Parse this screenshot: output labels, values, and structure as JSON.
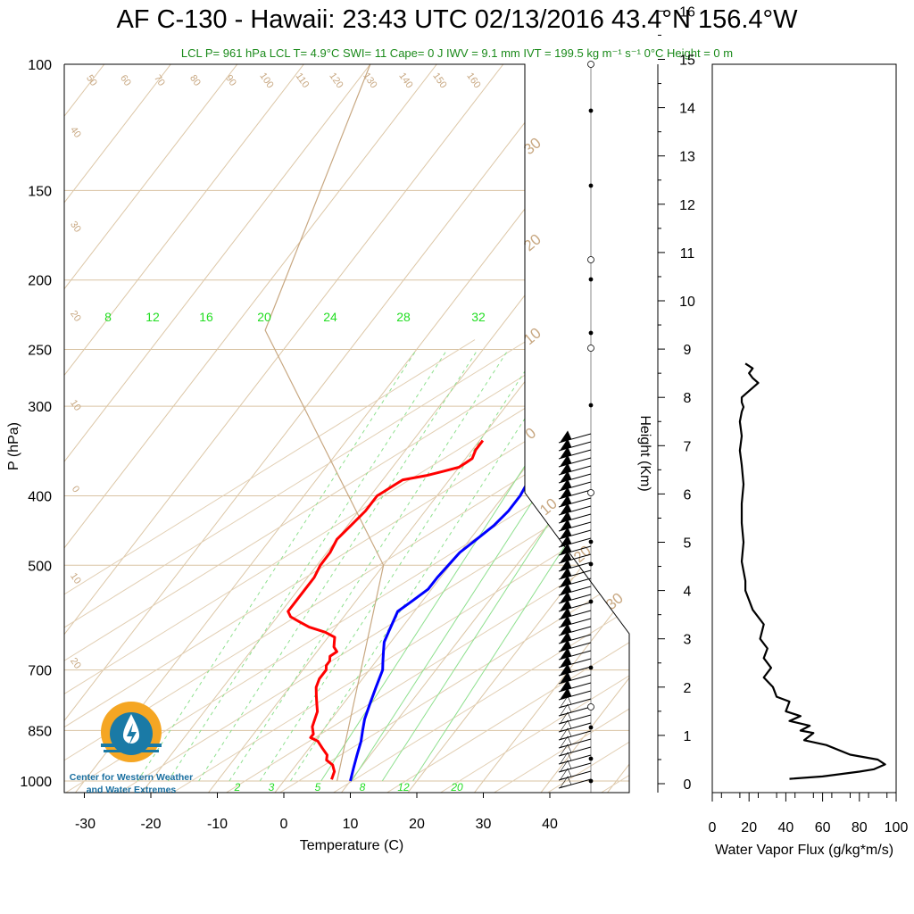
{
  "header": {
    "title": "AF C-130 - Hawaii: 23:43 UTC 02/13/2016  43.4°N 156.4°W",
    "subtitle": "LCL P= 961 hPa  LCL T= 4.9°C  SWI= 11  Cape= 0 J  IWV = 9.1 mm  IVT = 199.5 kg m⁻¹ s⁻¹  0°C Height = 0 m"
  },
  "logo": {
    "org_line1": "Center for Western Weather",
    "org_line2": "and Water Extremes",
    "colors": {
      "sun": "#f5a623",
      "water": "#1a7aa6"
    }
  },
  "chart_data": [
    {
      "type": "line",
      "name": "skew-t",
      "xlabel": "Temperature (C)",
      "ylabel": "P (hPa)",
      "xlim": [
        -30,
        40
      ],
      "ylim": [
        1000,
        100
      ],
      "y_scale": "log",
      "x_ticks": [
        -30,
        -20,
        -10,
        0,
        10,
        20,
        30,
        40
      ],
      "y_ticks": [
        100,
        150,
        200,
        250,
        300,
        400,
        500,
        700,
        850,
        1000
      ],
      "isotherm_labels": [
        "50",
        "60",
        "70",
        "80",
        "90",
        "100",
        "110",
        "120",
        "130",
        "140",
        "150",
        "160",
        "40",
        "30",
        "20",
        "10",
        "0",
        "10",
        "20",
        "30",
        "20",
        "10",
        "0",
        "10",
        "20",
        "30"
      ],
      "mixing_ratio_upper_labels": [
        "8",
        "12",
        "16",
        "20",
        "24",
        "28",
        "32"
      ],
      "mixing_ratio_lower_labels": [
        "2",
        "3",
        "5",
        "8",
        "12",
        "20"
      ],
      "colors": {
        "temperature": "#ff0000",
        "dewpoint": "#0000ff",
        "mixing_ratio": "#00cc00",
        "isotherms": "#d2b48c"
      },
      "series": [
        {
          "name": "",
          "role": "temperature",
          "color": "#ff0000",
          "x": [
            7,
            6.5,
            5.5,
            4,
            3.5,
            2,
            0.5,
            -1,
            -1,
            -1.5,
            -2,
            -2.5,
            -3,
            -4,
            -5,
            -6,
            -6.5,
            -6.5,
            -7,
            -7,
            -7.5,
            -7,
            -8,
            -8.5,
            -9,
            -11,
            -14,
            -16,
            -18,
            -19,
            -19,
            -19,
            -19,
            -19.5,
            -19.5,
            -20,
            -19.5,
            -19,
            -19,
            -19,
            -18.5,
            -18,
            -17.5,
            -17,
            -14,
            -12,
            -10,
            -9.5,
            -9,
            -9.5,
            -9.5
          ],
          "y": [
            995,
            970,
            950,
            935,
            920,
            900,
            880,
            870,
            860,
            850,
            840,
            820,
            800,
            780,
            760,
            740,
            720,
            700,
            690,
            680,
            670,
            660,
            650,
            640,
            630,
            620,
            610,
            600,
            590,
            580,
            560,
            540,
            520,
            500,
            480,
            460,
            440,
            420,
            410,
            400,
            395,
            390,
            385,
            380,
            375,
            370,
            365,
            360,
            355,
            345,
            335
          ]
        },
        {
          "name": "",
          "role": "dewpoint",
          "color": "#0000ff",
          "x": [
            10,
            9,
            8,
            7,
            6,
            5,
            4,
            3,
            2,
            1,
            0,
            -1,
            -1.5,
            -2,
            -2.5,
            -1.5,
            -0.5,
            -0.5,
            0,
            1,
            2,
            2.5,
            2.5,
            2,
            2,
            2,
            1.5,
            1,
            0,
            -0.5,
            -0.5
          ],
          "y": [
            1000,
            960,
            920,
            880,
            850,
            820,
            780,
            740,
            700,
            680,
            660,
            640,
            620,
            600,
            580,
            560,
            540,
            520,
            480,
            460,
            440,
            420,
            400,
            380,
            360,
            345,
            335,
            325,
            315,
            305,
            300
          ]
        }
      ]
    },
    {
      "type": "line",
      "name": "water-vapor-flux",
      "xlabel": "Water Vapor Flux (g/kg*m/s)",
      "ylabel": "Height (Km)",
      "xlim": [
        0,
        100
      ],
      "ylim": [
        0,
        16.5
      ],
      "x_ticks": [
        0,
        20,
        40,
        60,
        80,
        100
      ],
      "y_ticks": [
        0,
        1,
        2,
        3,
        4,
        5,
        6,
        7,
        8,
        9,
        10,
        11,
        12,
        13,
        14,
        15,
        16
      ],
      "series": [
        {
          "name": "",
          "color": "#000000",
          "x": [
            42,
            60,
            80,
            88,
            94,
            90,
            75,
            62,
            50,
            55,
            48,
            53,
            42,
            48,
            40,
            42,
            35,
            33,
            28,
            32,
            28,
            30,
            26,
            28,
            22,
            20,
            18,
            18,
            16,
            17,
            16,
            16,
            17,
            16,
            15,
            16,
            15,
            16,
            17,
            16,
            16,
            19,
            22,
            25,
            22,
            20,
            22,
            18
          ],
          "y": [
            0.1,
            0.15,
            0.25,
            0.3,
            0.4,
            0.5,
            0.6,
            0.8,
            0.9,
            1.05,
            1.1,
            1.2,
            1.3,
            1.4,
            1.5,
            1.7,
            1.8,
            2.0,
            2.2,
            2.4,
            2.6,
            2.8,
            3.0,
            3.3,
            3.6,
            3.8,
            4.0,
            4.2,
            4.6,
            5.0,
            5.4,
            5.8,
            6.2,
            6.6,
            6.9,
            7.2,
            7.5,
            7.7,
            7.8,
            7.9,
            8.0,
            8.1,
            8.2,
            8.3,
            8.4,
            8.5,
            8.6,
            8.7
          ]
        }
      ]
    }
  ]
}
